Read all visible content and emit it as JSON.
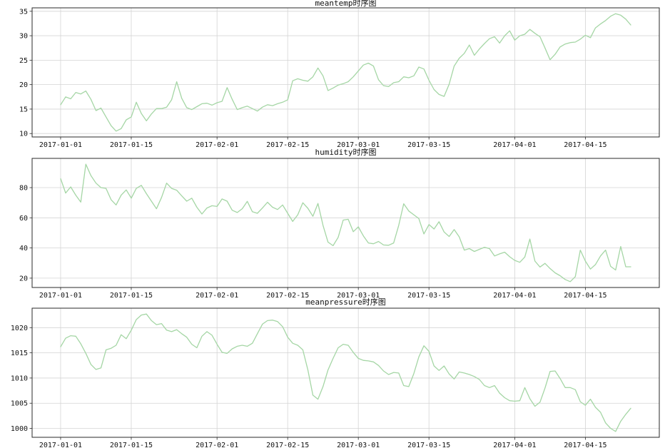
{
  "figure": {
    "background": "#ffffff",
    "line_color": "#a5d6a5",
    "grid_color": "#d4d4d4",
    "spine_color": "#2a2a2a",
    "text_color": "#111111"
  },
  "dates": [
    "2017-01-01",
    "2017-01-02",
    "2017-01-03",
    "2017-01-04",
    "2017-01-05",
    "2017-01-06",
    "2017-01-07",
    "2017-01-08",
    "2017-01-09",
    "2017-01-10",
    "2017-01-11",
    "2017-01-12",
    "2017-01-13",
    "2017-01-14",
    "2017-01-15",
    "2017-01-16",
    "2017-01-17",
    "2017-01-18",
    "2017-01-19",
    "2017-01-20",
    "2017-01-21",
    "2017-01-22",
    "2017-01-23",
    "2017-01-24",
    "2017-01-25",
    "2017-01-26",
    "2017-01-27",
    "2017-01-28",
    "2017-01-29",
    "2017-01-30",
    "2017-01-31",
    "2017-02-01",
    "2017-02-02",
    "2017-02-03",
    "2017-02-04",
    "2017-02-05",
    "2017-02-06",
    "2017-02-07",
    "2017-02-08",
    "2017-02-09",
    "2017-02-10",
    "2017-02-11",
    "2017-02-12",
    "2017-02-13",
    "2017-02-14",
    "2017-02-15",
    "2017-02-16",
    "2017-02-17",
    "2017-02-18",
    "2017-02-19",
    "2017-02-20",
    "2017-02-21",
    "2017-02-22",
    "2017-02-23",
    "2017-02-24",
    "2017-02-25",
    "2017-02-26",
    "2017-02-27",
    "2017-02-28",
    "2017-03-01",
    "2017-03-02",
    "2017-03-03",
    "2017-03-04",
    "2017-03-05",
    "2017-03-06",
    "2017-03-07",
    "2017-03-08",
    "2017-03-09",
    "2017-03-10",
    "2017-03-11",
    "2017-03-12",
    "2017-03-13",
    "2017-03-14",
    "2017-03-15",
    "2017-03-16",
    "2017-03-17",
    "2017-03-18",
    "2017-03-19",
    "2017-03-20",
    "2017-03-21",
    "2017-03-22",
    "2017-03-23",
    "2017-03-24",
    "2017-03-25",
    "2017-03-26",
    "2017-03-27",
    "2017-03-28",
    "2017-03-29",
    "2017-03-30",
    "2017-03-31",
    "2017-04-01",
    "2017-04-02",
    "2017-04-03",
    "2017-04-04",
    "2017-04-05",
    "2017-04-06",
    "2017-04-07",
    "2017-04-08",
    "2017-04-09",
    "2017-04-10",
    "2017-04-11",
    "2017-04-12",
    "2017-04-13",
    "2017-04-14",
    "2017-04-15",
    "2017-04-16",
    "2017-04-17",
    "2017-04-18",
    "2017-04-19",
    "2017-04-20",
    "2017-04-21",
    "2017-04-22",
    "2017-04-23",
    "2017-04-24"
  ],
  "chart_data": [
    {
      "type": "line",
      "title": "meantemp时序图",
      "series_name": "meantemp",
      "legend": "none",
      "grid": true,
      "y_ticks": [
        10,
        15,
        20,
        25,
        30,
        35
      ],
      "x_tick_labels": [
        "2017-01-01",
        "2017-01-15",
        "2017-02-01",
        "2017-02-15",
        "2017-03-01",
        "2017-03-15",
        "2017-04-01",
        "2017-04-15"
      ],
      "values": [
        15.9,
        17.5,
        17.1,
        18.4,
        18.1,
        18.7,
        17.0,
        14.7,
        15.2,
        13.4,
        11.6,
        10.5,
        11.0,
        12.8,
        13.4,
        16.4,
        14.1,
        12.6,
        14.0,
        15.1,
        15.1,
        15.4,
        16.9,
        20.6,
        17.2,
        15.3,
        14.9,
        15.5,
        16.1,
        16.2,
        15.8,
        16.3,
        16.6,
        19.4,
        17.0,
        14.9,
        15.3,
        15.6,
        15.1,
        14.6,
        15.4,
        15.9,
        15.7,
        16.1,
        16.4,
        16.9,
        20.8,
        21.2,
        20.9,
        20.7,
        21.6,
        23.4,
        21.8,
        18.8,
        19.3,
        19.9,
        20.2,
        20.6,
        21.6,
        22.8,
        24.0,
        24.4,
        23.8,
        21.0,
        19.8,
        19.6,
        20.4,
        20.6,
        21.6,
        21.4,
        21.8,
        23.6,
        23.2,
        20.9,
        19.0,
        18.0,
        17.6,
        20.1,
        23.8,
        25.4,
        26.4,
        28.1,
        26.0,
        27.3,
        28.4,
        29.4,
        29.8,
        28.5,
        30.0,
        31.0,
        29.1,
        30.0,
        30.3,
        31.3,
        30.5,
        29.8,
        27.5,
        25.1,
        26.2,
        27.7,
        28.3,
        28.6,
        28.7,
        29.3,
        30.1,
        29.6,
        31.6,
        32.4,
        33.1,
        34.0,
        34.5,
        34.2,
        33.4,
        32.2
      ]
    },
    {
      "type": "line",
      "title": "humidity时序图",
      "series_name": "humidity",
      "legend": "none",
      "grid": true,
      "y_ticks": [
        20,
        40,
        60,
        80
      ],
      "x_tick_labels": [
        "2017-01-01",
        "2017-01-15",
        "2017-02-01",
        "2017-02-15",
        "2017-03-01",
        "2017-03-15",
        "2017-04-01",
        "2017-04-15"
      ],
      "values": [
        85.9,
        76.4,
        80.5,
        75.0,
        70.4,
        95.5,
        88.0,
        83.0,
        80.0,
        79.5,
        72.0,
        68.5,
        75.0,
        78.5,
        73.0,
        79.5,
        81.5,
        76.0,
        71.0,
        66.0,
        73.5,
        83.0,
        79.5,
        78.3,
        74.5,
        71.0,
        73.0,
        67.0,
        62.5,
        66.5,
        68.0,
        67.5,
        72.5,
        71.0,
        65.0,
        63.5,
        66.0,
        70.9,
        64.0,
        63.0,
        66.5,
        70.3,
        67.0,
        65.5,
        68.5,
        63.0,
        57.6,
        62.0,
        70.0,
        66.3,
        61.0,
        69.5,
        55.0,
        43.9,
        41.5,
        47.0,
        58.5,
        59.0,
        50.8,
        54.0,
        48.0,
        43.3,
        42.8,
        44.3,
        42.0,
        41.8,
        43.3,
        55.0,
        69.3,
        64.5,
        62.0,
        59.5,
        49.3,
        55.5,
        52.6,
        57.4,
        50.6,
        47.6,
        52.2,
        47.4,
        38.6,
        39.6,
        37.7,
        39.1,
        40.5,
        39.6,
        34.7,
        36.1,
        37.2,
        34.2,
        31.8,
        30.5,
        34.0,
        45.9,
        31.3,
        27.4,
        29.8,
        26.4,
        23.5,
        21.6,
        19.1,
        17.7,
        21.0,
        38.6,
        31.3,
        26.0,
        29.0,
        34.7,
        38.6,
        27.8,
        25.4,
        41.0,
        27.5,
        27.5
      ]
    },
    {
      "type": "line",
      "title": "meanpressure时序图",
      "series_name": "meanpressure",
      "legend": "none",
      "grid": true,
      "y_ticks": [
        1000,
        1005,
        1010,
        1015,
        1020
      ],
      "x_tick_labels": [
        "2017-01-01",
        "2017-01-15",
        "2017-02-01",
        "2017-02-15",
        "2017-03-01",
        "2017-03-15",
        "2017-04-01",
        "2017-04-15"
      ],
      "values": [
        1016.2,
        1017.9,
        1018.4,
        1018.3,
        1016.8,
        1014.9,
        1012.7,
        1011.7,
        1012.0,
        1015.6,
        1015.9,
        1016.5,
        1018.6,
        1017.8,
        1019.5,
        1021.6,
        1022.5,
        1022.7,
        1021.4,
        1020.6,
        1020.8,
        1019.5,
        1019.2,
        1019.6,
        1018.8,
        1018.1,
        1016.7,
        1016.0,
        1018.3,
        1019.2,
        1018.5,
        1016.7,
        1015.1,
        1014.9,
        1015.8,
        1016.3,
        1016.5,
        1016.3,
        1016.9,
        1018.8,
        1020.7,
        1021.4,
        1021.5,
        1021.2,
        1020.2,
        1018.1,
        1016.9,
        1016.5,
        1015.6,
        1011.6,
        1006.6,
        1005.8,
        1008.3,
        1011.6,
        1013.9,
        1016.0,
        1016.7,
        1016.5,
        1015.1,
        1013.9,
        1013.5,
        1013.4,
        1013.2,
        1012.5,
        1011.4,
        1010.7,
        1011.1,
        1011.0,
        1008.5,
        1008.3,
        1010.9,
        1014.2,
        1016.4,
        1015.3,
        1012.4,
        1011.5,
        1012.4,
        1010.8,
        1009.8,
        1011.2,
        1011.0,
        1010.7,
        1010.3,
        1009.7,
        1008.5,
        1008.1,
        1008.5,
        1007.0,
        1006.1,
        1005.5,
        1005.4,
        1005.5,
        1008.1,
        1005.9,
        1004.4,
        1005.2,
        1008.0,
        1011.3,
        1011.4,
        1009.9,
        1008.1,
        1008.1,
        1007.7,
        1005.3,
        1004.6,
        1005.8,
        1004.2,
        1003.2,
        1001.1,
        1000.0,
        999.4,
        1001.4,
        1002.8,
        1004.0
      ]
    }
  ]
}
